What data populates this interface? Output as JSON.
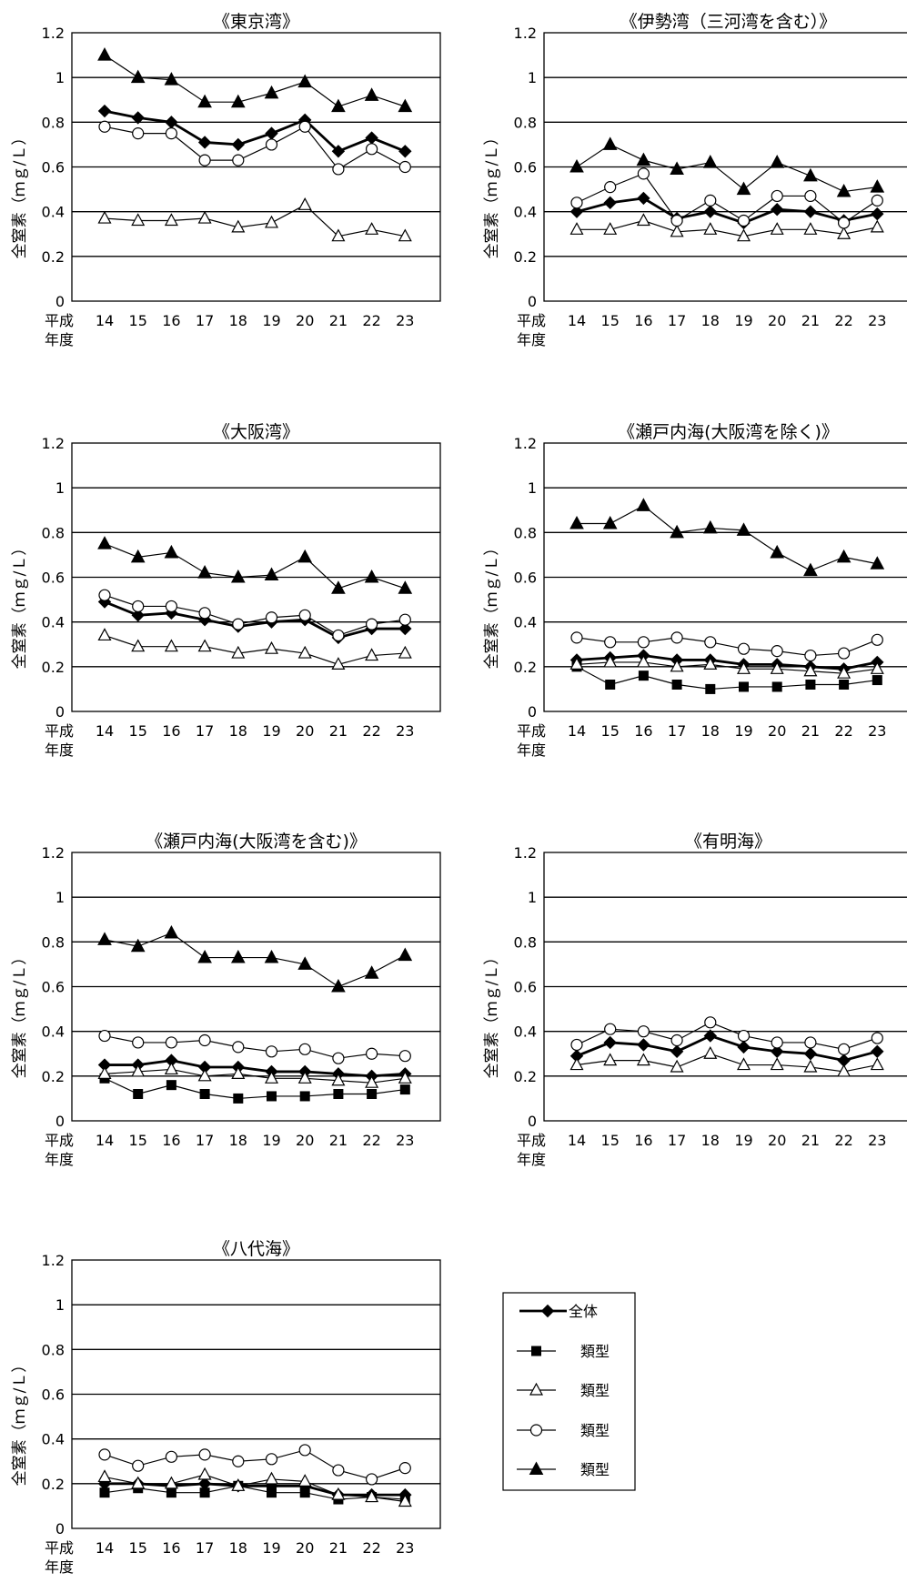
{
  "figure": {
    "x_prefix": "平成",
    "x_prefix2": "年度",
    "ylabel": "全窒素（ｍｇ/Ｌ）",
    "legend": [
      "全体",
      "類型",
      "類型",
      "類型",
      "類型"
    ]
  },
  "chart_data": [
    {
      "type": "line",
      "title": "《東京湾》",
      "categories": [
        "14",
        "15",
        "16",
        "17",
        "18",
        "19",
        "20",
        "21",
        "22",
        "23"
      ],
      "ylim": [
        0,
        1.2
      ],
      "yticks": [
        "0",
        "0.2",
        "0.4",
        "0.6",
        "0.8",
        "1",
        "1.2"
      ],
      "series": [
        {
          "name": "全体",
          "marker": "diamond",
          "values": [
            0.85,
            0.82,
            0.8,
            0.71,
            0.7,
            0.75,
            0.81,
            0.67,
            0.73,
            0.67
          ]
        },
        {
          "name": "類型",
          "marker": "triangle-open",
          "values": [
            0.37,
            0.36,
            0.36,
            0.37,
            0.33,
            0.35,
            0.43,
            0.29,
            0.32,
            0.29
          ]
        },
        {
          "name": "類型",
          "marker": "circle-open",
          "values": [
            0.78,
            0.75,
            0.75,
            0.63,
            0.63,
            0.7,
            0.78,
            0.59,
            0.68,
            0.6
          ]
        },
        {
          "name": "類型",
          "marker": "triangle-filled",
          "values": [
            1.1,
            1.0,
            0.99,
            0.89,
            0.89,
            0.93,
            0.98,
            0.87,
            0.92,
            0.87
          ]
        }
      ]
    },
    {
      "type": "line",
      "title": "《伊勢湾（三河湾を含む）》",
      "categories": [
        "14",
        "15",
        "16",
        "17",
        "18",
        "19",
        "20",
        "21",
        "22",
        "23"
      ],
      "ylim": [
        0,
        1.2
      ],
      "yticks": [
        "0",
        "0.2",
        "0.4",
        "0.6",
        "0.8",
        "1",
        "1.2"
      ],
      "series": [
        {
          "name": "全体",
          "marker": "diamond",
          "values": [
            0.4,
            0.44,
            0.46,
            0.37,
            0.4,
            0.35,
            0.41,
            0.4,
            0.36,
            0.39
          ]
        },
        {
          "name": "類型",
          "marker": "triangle-open",
          "values": [
            0.32,
            0.32,
            0.36,
            0.31,
            0.32,
            0.29,
            0.32,
            0.32,
            0.3,
            0.33
          ]
        },
        {
          "name": "類型",
          "marker": "circle-open",
          "values": [
            0.44,
            0.51,
            0.57,
            0.36,
            0.45,
            0.36,
            0.47,
            0.47,
            0.35,
            0.45
          ]
        },
        {
          "name": "類型",
          "marker": "triangle-filled",
          "values": [
            0.6,
            0.7,
            0.63,
            0.59,
            0.62,
            0.5,
            0.62,
            0.56,
            0.49,
            0.51
          ]
        }
      ]
    },
    {
      "type": "line",
      "title": "《大阪湾》",
      "categories": [
        "14",
        "15",
        "16",
        "17",
        "18",
        "19",
        "20",
        "21",
        "22",
        "23"
      ],
      "ylim": [
        0,
        1.2
      ],
      "yticks": [
        "0",
        "0.2",
        "0.4",
        "0.6",
        "0.8",
        "1",
        "1.2"
      ],
      "series": [
        {
          "name": "全体",
          "marker": "diamond",
          "values": [
            0.49,
            0.43,
            0.44,
            0.41,
            0.38,
            0.4,
            0.41,
            0.33,
            0.37,
            0.37
          ]
        },
        {
          "name": "類型",
          "marker": "triangle-open",
          "values": [
            0.34,
            0.29,
            0.29,
            0.29,
            0.26,
            0.28,
            0.26,
            0.21,
            0.25,
            0.26
          ]
        },
        {
          "name": "類型",
          "marker": "circle-open",
          "values": [
            0.52,
            0.47,
            0.47,
            0.44,
            0.39,
            0.42,
            0.43,
            0.34,
            0.39,
            0.41
          ]
        },
        {
          "name": "類型",
          "marker": "triangle-filled",
          "values": [
            0.75,
            0.69,
            0.71,
            0.62,
            0.6,
            0.61,
            0.69,
            0.55,
            0.6,
            0.55
          ]
        }
      ]
    },
    {
      "type": "line",
      "title": "《瀬戸内海(大阪湾を除く)》",
      "categories": [
        "14",
        "15",
        "16",
        "17",
        "18",
        "19",
        "20",
        "21",
        "22",
        "23"
      ],
      "ylim": [
        0,
        1.2
      ],
      "yticks": [
        "0",
        "0.2",
        "0.4",
        "0.6",
        "0.8",
        "1",
        "1.2"
      ],
      "series": [
        {
          "name": "全体",
          "marker": "diamond",
          "values": [
            0.23,
            0.24,
            0.25,
            0.23,
            0.23,
            0.21,
            0.21,
            0.2,
            0.19,
            0.22
          ]
        },
        {
          "name": "類型",
          "marker": "square",
          "values": [
            0.2,
            0.12,
            0.16,
            0.12,
            0.1,
            0.11,
            0.11,
            0.12,
            0.12,
            0.14
          ]
        },
        {
          "name": "類型",
          "marker": "triangle-open",
          "values": [
            0.21,
            0.22,
            0.22,
            0.2,
            0.21,
            0.19,
            0.19,
            0.18,
            0.17,
            0.19
          ]
        },
        {
          "name": "類型",
          "marker": "circle-open",
          "values": [
            0.33,
            0.31,
            0.31,
            0.33,
            0.31,
            0.28,
            0.27,
            0.25,
            0.26,
            0.32
          ]
        },
        {
          "name": "類型",
          "marker": "triangle-filled",
          "values": [
            0.84,
            0.84,
            0.92,
            0.8,
            0.82,
            0.81,
            0.71,
            0.63,
            0.69,
            0.66
          ]
        }
      ]
    },
    {
      "type": "line",
      "title": "《瀬戸内海(大阪湾を含む)》",
      "categories": [
        "14",
        "15",
        "16",
        "17",
        "18",
        "19",
        "20",
        "21",
        "22",
        "23"
      ],
      "ylim": [
        0,
        1.2
      ],
      "yticks": [
        "0",
        "0.2",
        "0.4",
        "0.6",
        "0.8",
        "1",
        "1.2"
      ],
      "series": [
        {
          "name": "全体",
          "marker": "diamond",
          "values": [
            0.25,
            0.25,
            0.27,
            0.24,
            0.24,
            0.22,
            0.22,
            0.21,
            0.2,
            0.21
          ]
        },
        {
          "name": "類型",
          "marker": "square",
          "values": [
            0.19,
            0.12,
            0.16,
            0.12,
            0.1,
            0.11,
            0.11,
            0.12,
            0.12,
            0.14
          ]
        },
        {
          "name": "類型",
          "marker": "triangle-open",
          "values": [
            0.21,
            0.22,
            0.23,
            0.2,
            0.21,
            0.19,
            0.19,
            0.18,
            0.17,
            0.19
          ]
        },
        {
          "name": "類型",
          "marker": "circle-open",
          "values": [
            0.38,
            0.35,
            0.35,
            0.36,
            0.33,
            0.31,
            0.32,
            0.28,
            0.3,
            0.29
          ]
        },
        {
          "name": "類型",
          "marker": "triangle-filled",
          "values": [
            0.81,
            0.78,
            0.84,
            0.73,
            0.73,
            0.73,
            0.7,
            0.6,
            0.66,
            0.74
          ]
        }
      ]
    },
    {
      "type": "line",
      "title": "《有明海》",
      "categories": [
        "14",
        "15",
        "16",
        "17",
        "18",
        "19",
        "20",
        "21",
        "22",
        "23"
      ],
      "ylim": [
        0,
        1.2
      ],
      "yticks": [
        "0",
        "0.2",
        "0.4",
        "0.6",
        "0.8",
        "1",
        "1.2"
      ],
      "series": [
        {
          "name": "全体",
          "marker": "diamond",
          "values": [
            0.29,
            0.35,
            0.34,
            0.31,
            0.38,
            0.33,
            0.31,
            0.3,
            0.27,
            0.31
          ]
        },
        {
          "name": "類型",
          "marker": "triangle-open",
          "values": [
            0.25,
            0.27,
            0.27,
            0.24,
            0.3,
            0.25,
            0.25,
            0.24,
            0.22,
            0.25
          ]
        },
        {
          "name": "類型",
          "marker": "circle-open",
          "values": [
            0.34,
            0.41,
            0.4,
            0.36,
            0.44,
            0.38,
            0.35,
            0.35,
            0.32,
            0.37
          ]
        }
      ]
    },
    {
      "type": "line",
      "title": "《八代海》",
      "categories": [
        "14",
        "15",
        "16",
        "17",
        "18",
        "19",
        "20",
        "21",
        "22",
        "23"
      ],
      "ylim": [
        0,
        1.2
      ],
      "yticks": [
        "0",
        "0.2",
        "0.4",
        "0.6",
        "0.8",
        "1",
        "1.2"
      ],
      "series": [
        {
          "name": "全体",
          "marker": "diamond",
          "values": [
            0.2,
            0.2,
            0.19,
            0.2,
            0.19,
            0.19,
            0.19,
            0.15,
            0.15,
            0.15
          ]
        },
        {
          "name": "類型",
          "marker": "square",
          "values": [
            0.16,
            0.18,
            0.16,
            0.16,
            0.19,
            0.16,
            0.16,
            0.13,
            0.14,
            0.13
          ]
        },
        {
          "name": "類型",
          "marker": "triangle-open",
          "values": [
            0.23,
            0.2,
            0.2,
            0.24,
            0.19,
            0.22,
            0.21,
            0.15,
            0.14,
            0.12
          ]
        },
        {
          "name": "類型",
          "marker": "circle-open",
          "values": [
            0.33,
            0.28,
            0.32,
            0.33,
            0.3,
            0.31,
            0.35,
            0.26,
            0.22,
            0.27
          ]
        }
      ]
    }
  ]
}
